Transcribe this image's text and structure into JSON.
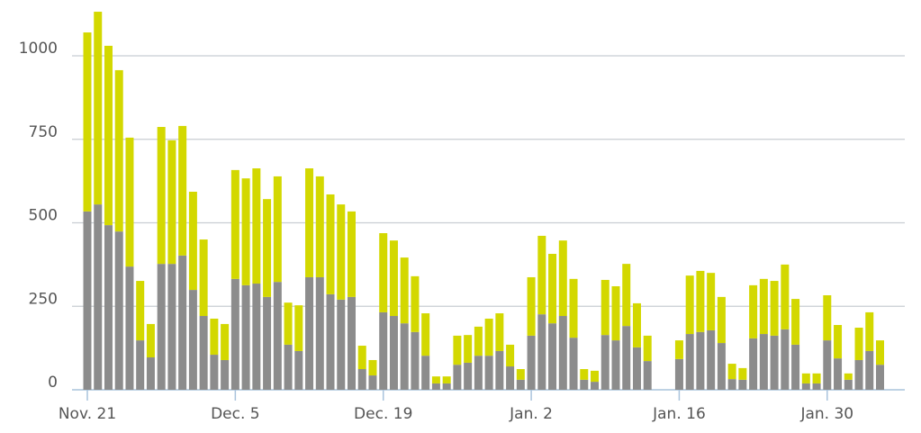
{
  "chart_data": {
    "type": "stacked-bar",
    "categories": [
      "Nov. 21",
      null,
      null,
      null,
      null,
      null,
      null,
      null,
      null,
      null,
      null,
      null,
      null,
      null,
      "Dec. 5",
      null,
      null,
      null,
      null,
      null,
      null,
      null,
      null,
      null,
      null,
      null,
      null,
      null,
      "Dec. 19",
      null,
      null,
      null,
      null,
      null,
      null,
      null,
      null,
      null,
      null,
      null,
      null,
      null,
      "Jan. 2",
      null,
      null,
      null,
      null,
      null,
      null,
      null,
      null,
      null,
      null,
      null,
      null,
      null,
      "Jan. 16",
      null,
      null,
      null,
      null,
      null,
      null,
      null,
      null,
      null,
      null,
      null,
      null,
      null,
      "Jan. 30",
      null,
      null,
      null,
      null,
      null
    ],
    "series": [
      {
        "color": "#8c8c8c",
        "values": [
          534,
          555,
          493,
          474,
          369,
          148,
          97,
          377,
          377,
          402,
          299,
          221,
          105,
          89,
          332,
          313,
          318,
          278,
          323,
          135,
          116,
          337,
          337,
          286,
          270,
          278,
          62,
          43,
          232,
          221,
          199,
          173,
          102,
          19,
          19,
          75,
          81,
          102,
          102,
          116,
          70,
          30,
          162,
          226,
          199,
          221,
          156,
          30,
          24,
          164,
          148,
          191,
          127,
          86,
          0,
          0,
          92,
          167,
          173,
          178,
          140,
          32,
          30,
          154,
          167,
          162,
          181,
          135,
          19,
          19,
          148,
          94,
          30,
          89,
          116,
          75
        ]
      },
      {
        "color": "#d3d800",
        "values": [
          536,
          577,
          537,
          483,
          386,
          178,
          100,
          410,
          370,
          388,
          294,
          229,
          108,
          108,
          326,
          320,
          345,
          293,
          316,
          126,
          137,
          326,
          302,
          299,
          285,
          256,
          70,
          46,
          237,
          226,
          197,
          167,
          127,
          21,
          21,
          87,
          83,
          87,
          111,
          113,
          65,
          32,
          175,
          235,
          208,
          226,
          176,
          32,
          33,
          165,
          162,
          186,
          132,
          76,
          0,
          0,
          56,
          175,
          183,
          172,
          138,
          46,
          35,
          159,
          165,
          164,
          194,
          137,
          30,
          30,
          135,
          100,
          19,
          97,
          116,
          73
        ]
      }
    ],
    "ylim": [
      0,
      1150
    ],
    "yticks": [
      0,
      250,
      500,
      750,
      1000
    ],
    "grid": true
  }
}
